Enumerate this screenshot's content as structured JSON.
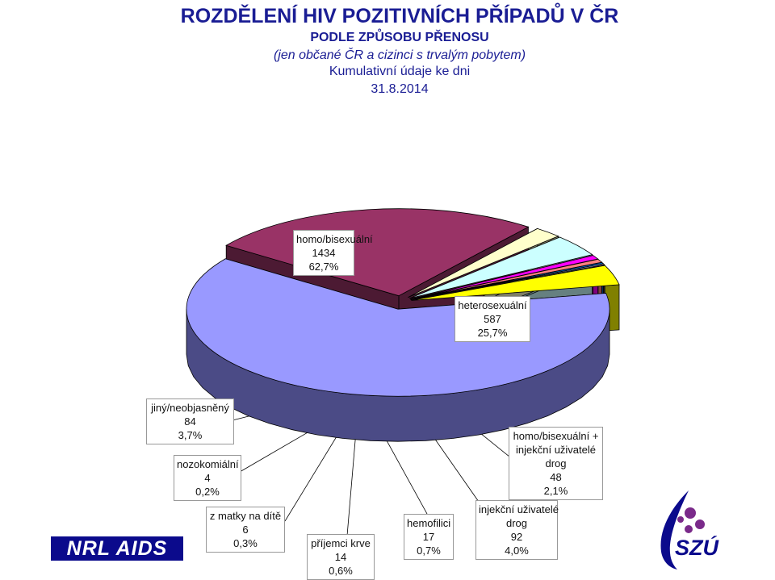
{
  "title": {
    "line1": "ROZDĚLENÍ HIV POZITIVNÍCH PŘÍPADŮ V ČR",
    "line2": "PODLE ZPŮSOBU PŘENOSU",
    "line3": "(jen občané ČR a cizinci s trvalým pobytem)",
    "line4": "Kumulativní údaje ke dni",
    "line5": "31.8.2014"
  },
  "chart_data": {
    "type": "pie",
    "style": "3d-exploded",
    "slices": [
      {
        "label": "homo/bisexuální",
        "value": 1434,
        "percent": "62,7%",
        "color": "#9999ff",
        "side_color": "#4b4b86"
      },
      {
        "label": "heterosexuální",
        "value": 587,
        "percent": "25,7%",
        "color": "#993366",
        "side_color": "#4c1a33"
      },
      {
        "label": "homo/bisexuální + injekční uživatelé drog",
        "value": 48,
        "percent": "2,1%",
        "color": "#ffffcc",
        "side_color": "#7f7f66"
      },
      {
        "label": "injekční uživatelé drog",
        "value": 92,
        "percent": "4,0%",
        "color": "#ccffff",
        "side_color": "#668080"
      },
      {
        "label": "hemofilici",
        "value": 17,
        "percent": "0,7%",
        "color": "#ff00ff",
        "side_color": "#800080"
      },
      {
        "label": "příjemci krve",
        "value": 14,
        "percent": "0,6%",
        "color": "#ff8080",
        "side_color": "#804040"
      },
      {
        "label": "z matky na dítě",
        "value": 6,
        "percent": "0,3%",
        "color": "#0066cc",
        "side_color": "#003366"
      },
      {
        "label": "nozokomiální",
        "value": 4,
        "percent": "0,2%",
        "color": "#ccccff",
        "side_color": "#666680"
      },
      {
        "label": "jiný/neobjasněný",
        "value": 84,
        "percent": "3,7%",
        "color": "#ffff00",
        "side_color": "#808000"
      }
    ]
  },
  "labels": {
    "homo": {
      "line1": "homo/bisexuální",
      "line2": "1434",
      "line3": "62,7%"
    },
    "hetero": {
      "line1": "heterosexuální",
      "line2": "587",
      "line3": "25,7%"
    },
    "jiny": {
      "line1": "jiný/neobjasněný",
      "line2": "84",
      "line3": "3,7%"
    },
    "nozo": {
      "line1": "nozokomiální",
      "line2": "4",
      "line3": "0,2%"
    },
    "homo_idu": {
      "line1": "homo/bisexuální +",
      "line2": "injekční uživatelé",
      "line3": "drog",
      "line4": "48",
      "line5": "2,1%"
    },
    "matky": {
      "line1": "z matky na dítě",
      "line2": "6",
      "line3": "0,3%"
    },
    "krev": {
      "line1": "příjemci krve",
      "line2": "14",
      "line3": "0,6%"
    },
    "hemo": {
      "line1": "hemofilici",
      "line2": "17",
      "line3": "0,7%"
    },
    "idu": {
      "line1": "injekční uživatelé",
      "line2": "drog",
      "line3": "92",
      "line4": "4,0%"
    }
  },
  "logos": {
    "left": "NRL AIDS",
    "right": "SZÚ"
  }
}
